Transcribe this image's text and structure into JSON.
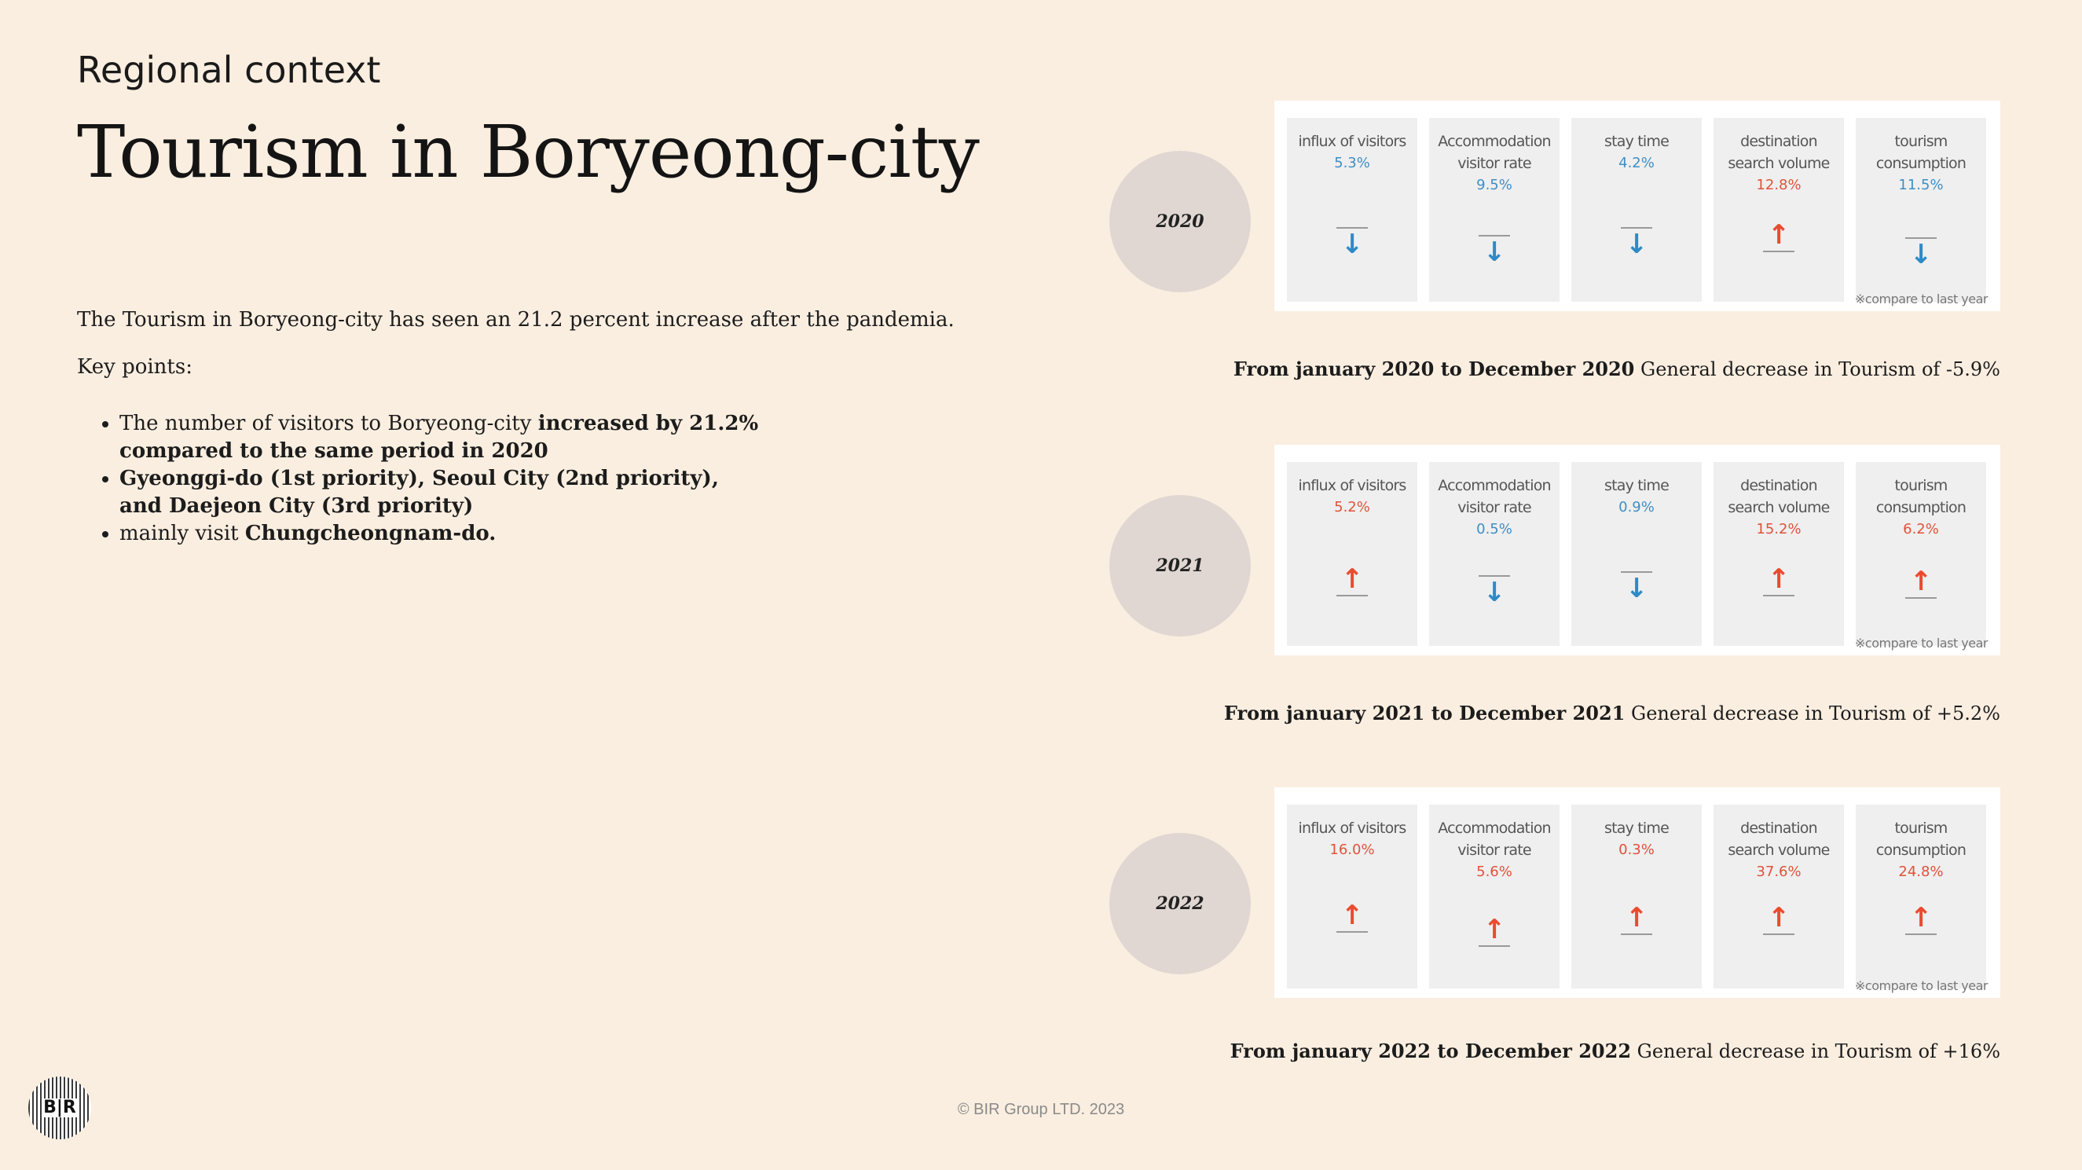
{
  "header": {
    "subtitle": "Regional context",
    "title": "Tourism in Boryeong-city"
  },
  "intro": "The Tourism in Boryeong-city has seen an 21.2 percent increase after the pandemia.",
  "key_points_label": "Key points:",
  "bullets": [
    {
      "parts": [
        {
          "text": "The number of visitors to Boryeong-city ",
          "bold": false
        },
        {
          "text": "increased by 21.2% compared to the same period in 2020",
          "bold": true
        }
      ]
    },
    {
      "parts": [
        {
          "text": "Gyeonggi-do (1st priority), Seoul City (2nd priority), and Daejeon City (3rd priority)",
          "bold": true
        }
      ]
    },
    {
      "parts": [
        {
          "text": " mainly visit ",
          "bold": false
        },
        {
          "text": "Chungcheongnam-do.",
          "bold": true
        }
      ]
    }
  ],
  "metric_labels": [
    [
      "influx of visitors"
    ],
    [
      "Accommodation",
      "visitor rate"
    ],
    [
      "stay time"
    ],
    [
      "destination",
      "search volume"
    ],
    [
      "tourism",
      "consumption"
    ]
  ],
  "compare_note": "※compare to last year",
  "years": [
    {
      "year": "2020",
      "metrics": [
        {
          "value": "5.3%",
          "direction": "down"
        },
        {
          "value": "9.5%",
          "direction": "down"
        },
        {
          "value": "4.2%",
          "direction": "down"
        },
        {
          "value": "12.8%",
          "direction": "up"
        },
        {
          "value": "11.5%",
          "direction": "down"
        }
      ],
      "caption_bold": "From january 2020 to December 2020",
      "caption_rest": " General decrease in Tourism of -5.9%"
    },
    {
      "year": "2021",
      "metrics": [
        {
          "value": "5.2%",
          "direction": "up"
        },
        {
          "value": "0.5%",
          "direction": "down"
        },
        {
          "value": "0.9%",
          "direction": "down"
        },
        {
          "value": "15.2%",
          "direction": "up"
        },
        {
          "value": "6.2%",
          "direction": "up"
        }
      ],
      "caption_bold": "From january 2021 to December 2021",
      "caption_rest": " General decrease in Tourism of +5.2%"
    },
    {
      "year": "2022",
      "metrics": [
        {
          "value": "16.0%",
          "direction": "up"
        },
        {
          "value": "5.6%",
          "direction": "up"
        },
        {
          "value": "0.3%",
          "direction": "up"
        },
        {
          "value": "37.6%",
          "direction": "up"
        },
        {
          "value": "24.8%",
          "direction": "up"
        }
      ],
      "caption_bold": "From january 2022 to December 2022",
      "caption_rest": " General decrease in Tourism of +16%"
    }
  ],
  "logo_text": "B|R",
  "footer": "© BIR Group LTD. 2023",
  "colors": {
    "background": "#faeee0",
    "up": "#ea4b2e",
    "down": "#2e8ac6",
    "circle": "#e0d7d3"
  }
}
